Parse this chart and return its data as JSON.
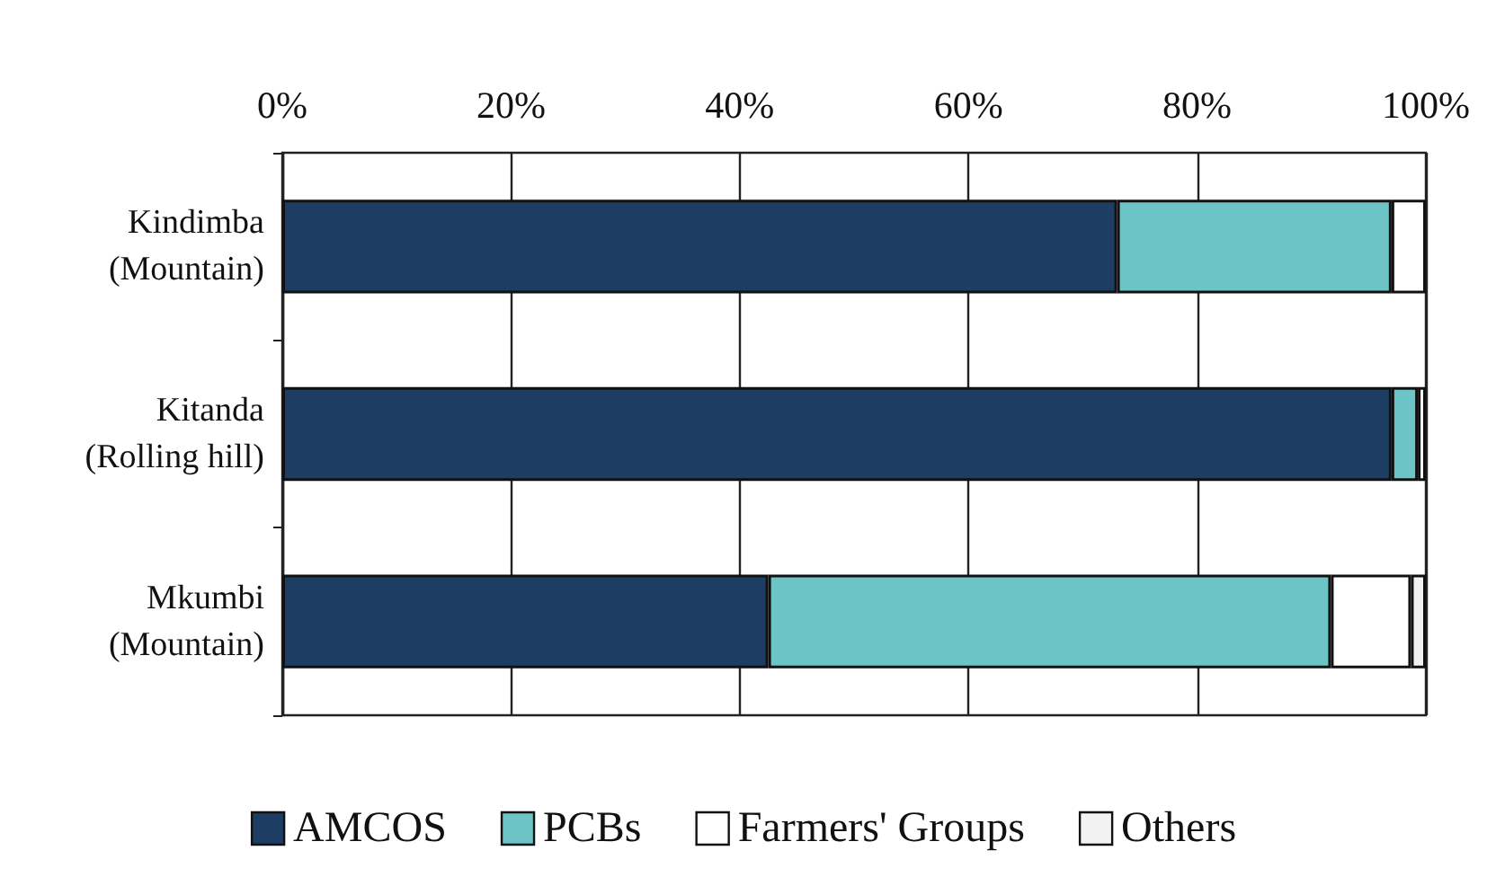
{
  "chart_data": {
    "type": "bar",
    "orientation": "horizontal",
    "stacked": true,
    "categories": [
      "Kindimba\n(Mountain)",
      "Kitanda\n(Rolling hill)",
      "Mkumbi\n(Mountain)"
    ],
    "series": [
      {
        "name": "AMCOS",
        "color": "#1d3d63",
        "values": [
          73,
          97,
          42.5
        ]
      },
      {
        "name": "PCBs",
        "color": "#6cc4c6",
        "values": [
          24,
          2.3,
          49.2
        ]
      },
      {
        "name": "Farmers' Groups",
        "color": "#ffffff",
        "values": [
          3,
          0.7,
          7
        ]
      },
      {
        "name": "Others",
        "color": "#f2f2f2",
        "values": [
          null,
          null,
          1.3
        ]
      }
    ],
    "xlim": [
      0,
      100
    ],
    "xticks": [
      {
        "value": 0,
        "label": "0%"
      },
      {
        "value": 20,
        "label": "20%"
      },
      {
        "value": 40,
        "label": "40%"
      },
      {
        "value": 60,
        "label": "60%"
      },
      {
        "value": 80,
        "label": "80%"
      },
      {
        "value": 100,
        "label": "100%"
      }
    ],
    "grid": "x",
    "legend": "bottom"
  }
}
